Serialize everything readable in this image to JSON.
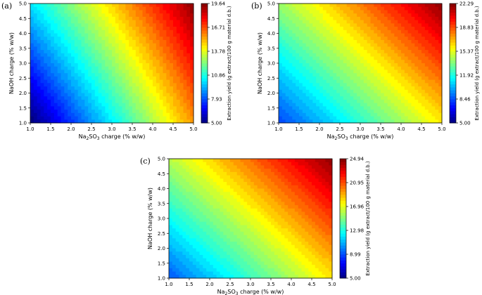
{
  "chart_data": [
    {
      "type": "heatmap",
      "panel_label": "(a)",
      "xlabel_main": "Na",
      "xlabel_sub1": "2",
      "xlabel_mid": "SO",
      "xlabel_sub2": "3",
      "xlabel_rest": " charge (% w/w)",
      "ylabel": "NaOH charge (% w/w)",
      "colorbar_label": "Extraction yield (g extract/100 g material d.b.)",
      "x_ticks": [
        "1.0",
        "1.5",
        "2.0",
        "2.5",
        "3.0",
        "3.5",
        "4.0",
        "4.5",
        "5.0"
      ],
      "y_ticks": [
        "1.0",
        "1.5",
        "2.0",
        "2.5",
        "3.0",
        "3.5",
        "4.0",
        "4.5",
        "5.0"
      ],
      "xlim": [
        1.0,
        5.0
      ],
      "ylim": [
        1.0,
        5.0
      ],
      "zlim": [
        5.0,
        19.64
      ],
      "colorbar_ticks": [
        "5.00",
        "7.93",
        "10.86",
        "13.78",
        "16.71",
        "19.64"
      ],
      "corners": {
        "x1y1": 5.0,
        "x5y1": 15.9,
        "x1y5": 10.3,
        "x5y5": 19.64
      }
    },
    {
      "type": "heatmap",
      "panel_label": "(b)",
      "xlabel_main": "Na",
      "xlabel_sub1": "2",
      "xlabel_mid": "SO",
      "xlabel_sub2": "3",
      "xlabel_rest": " charge (% w/w)",
      "ylabel": "NaOH charge (% w/w)",
      "colorbar_label": "Extraction yield (g extract/100 g material d.b.)",
      "x_ticks": [
        "1.0",
        "1.5",
        "2.0",
        "2.5",
        "3.0",
        "3.5",
        "4.0",
        "4.5",
        "5.0"
      ],
      "y_ticks": [
        "1.0",
        "1.5",
        "2.0",
        "2.5",
        "3.0",
        "3.5",
        "4.0",
        "4.5",
        "5.0"
      ],
      "xlim": [
        1.0,
        5.0
      ],
      "ylim": [
        1.0,
        5.0
      ],
      "zlim": [
        5.0,
        22.29
      ],
      "colorbar_ticks": [
        "5.00",
        "8.46",
        "11.92",
        "15.37",
        "18.83",
        "22.29"
      ],
      "corners": {
        "x1y1": 8.4,
        "x5y1": 16.3,
        "x1y5": 14.3,
        "x5y5": 22.29
      }
    },
    {
      "type": "heatmap",
      "panel_label": "(c)",
      "xlabel_main": "Na",
      "xlabel_sub1": "2",
      "xlabel_mid": "SO",
      "xlabel_sub2": "3",
      "xlabel_rest": " charge (% w/w)",
      "ylabel": "NaOH charge (% w/w)",
      "colorbar_label": "Extraction yield (g extract/100 g material d.b.)",
      "x_ticks": [
        "1.0",
        "1.5",
        "2.0",
        "2.5",
        "3.0",
        "3.5",
        "4.0",
        "4.5",
        "5.0"
      ],
      "y_ticks": [
        "1.0",
        "1.5",
        "2.0",
        "2.5",
        "3.0",
        "3.5",
        "4.0",
        "4.5",
        "5.0"
      ],
      "xlim": [
        1.0,
        5.0
      ],
      "ylim": [
        1.0,
        5.0
      ],
      "zlim": [
        5.0,
        24.94
      ],
      "colorbar_ticks": [
        "5.00",
        "8.99",
        "12.98",
        "16.96",
        "20.95",
        "24.94"
      ],
      "corners": {
        "x1y1": 9.4,
        "x5y1": 18.2,
        "x1y5": 16.3,
        "x5y5": 24.94
      }
    }
  ]
}
